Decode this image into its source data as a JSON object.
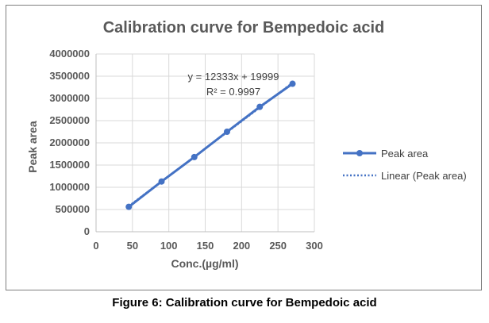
{
  "caption": "Figure 6: Calibration curve for Bempedoic acid",
  "chart_data": {
    "type": "line",
    "title": "Calibration curve for Bempedoic acid",
    "xlabel": "Conc.(µg/ml)",
    "ylabel": "Peak area",
    "xlim": [
      0,
      300
    ],
    "ylim": [
      0,
      4000000
    ],
    "x_ticks": [
      "0",
      "50",
      "100",
      "150",
      "200",
      "250",
      "300"
    ],
    "y_ticks": [
      "0",
      "500000",
      "1000000",
      "1500000",
      "2000000",
      "2500000",
      "3000000",
      "3500000",
      "4000000"
    ],
    "grid": true,
    "legend_position": "right",
    "series": [
      {
        "name": "Peak area",
        "color": "#4472c4",
        "x": [
          45,
          90,
          135,
          180,
          225,
          270
        ],
        "y": [
          560000,
          1130000,
          1680000,
          2250000,
          2810000,
          3330000
        ]
      }
    ],
    "trendline": {
      "name": "Linear (Peak area)",
      "slope": 12333,
      "intercept": 19999,
      "color": "#4472c4"
    },
    "annotations": {
      "equation": "y = 12333x + 19999",
      "r_squared": "R² = 0.9997"
    }
  }
}
